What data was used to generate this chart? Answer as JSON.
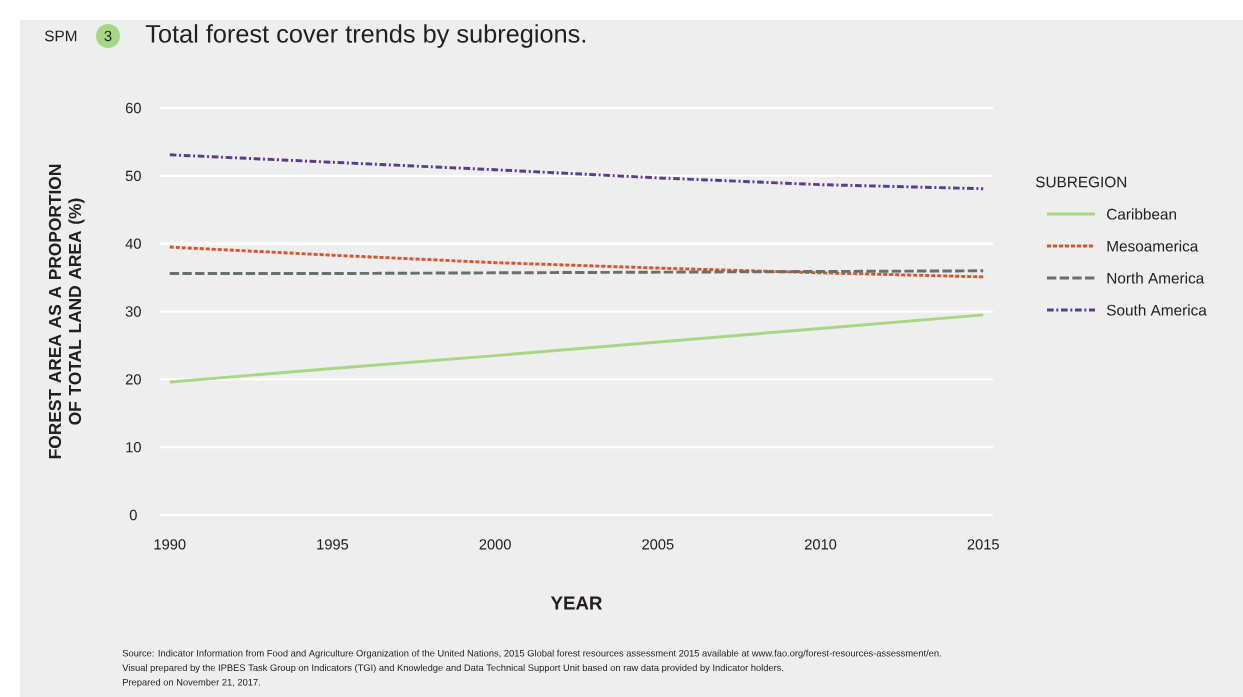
{
  "chart_data": {
    "type": "line",
    "title": "Total forest cover trends by subregions.",
    "xlabel": "YEAR",
    "ylabel": "FOREST AREA AS A PROPORTION OF TOTAL LAND AREA (%)",
    "legend_title": "SUBREGION",
    "x": [
      1990,
      1995,
      2000,
      2005,
      2010,
      2015
    ],
    "series": [
      {
        "name": "Caribbean",
        "color": "#a6d785",
        "line_style": "solid",
        "values": [
          19.6,
          21.6,
          23.5,
          25.5,
          27.5,
          29.5
        ]
      },
      {
        "name": "Mesoamerica",
        "color": "#e0522a",
        "line_style": "dotted",
        "values": [
          39.5,
          38.3,
          37.2,
          36.4,
          35.7,
          35.1
        ]
      },
      {
        "name": "North America",
        "color": "#68706a",
        "line_style": "dashed",
        "values": [
          35.6,
          35.6,
          35.7,
          35.8,
          35.9,
          36.0
        ]
      },
      {
        "name": "South America",
        "color": "#5c3a92",
        "line_style": "dashdot",
        "values": [
          53.1,
          52.0,
          50.9,
          49.7,
          48.7,
          48.1
        ]
      }
    ],
    "xlim": [
      1989.7,
      2015.3
    ],
    "ylim": [
      0,
      60
    ],
    "xticks": [
      1990,
      1995,
      2000,
      2005,
      2010,
      2015
    ],
    "yticks": [
      0,
      10,
      20,
      30,
      40,
      50,
      60
    ],
    "grid": "y",
    "legend": "right",
    "marker": "none",
    "annotations": [
      "SPM",
      "3",
      "Source: Indicator Information from Food and Agriculture Organization of the United Nations, 2015 Global forest resources assessment 2015 available at www.fao.org/forest-resources-assessment/en.",
      "Visual prepared by the IPBES Task Group on Indicators (TGI) and Knowledge and Data Technical Support Unit based on raw data provided by Indicator holders.",
      "Prepared on November 21, 2017."
    ]
  }
}
